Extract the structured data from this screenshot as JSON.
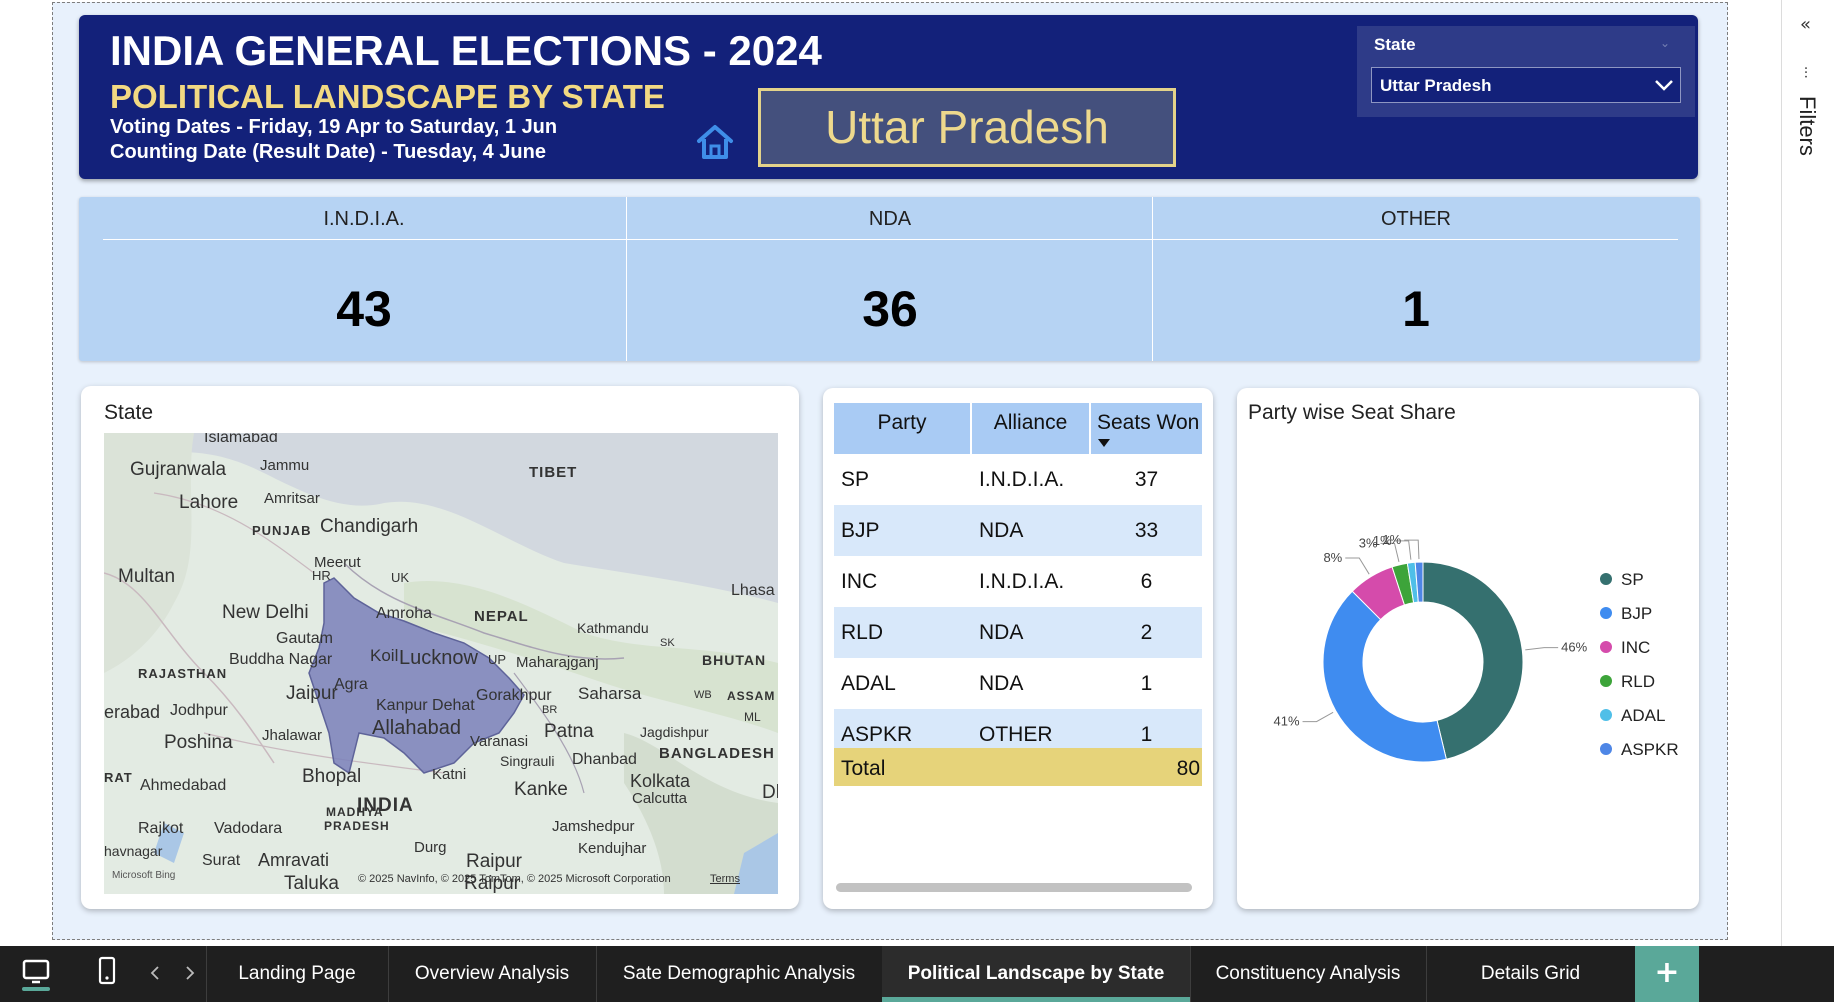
{
  "header": {
    "title": "INDIA GENERAL ELECTIONS - 2024",
    "subtitle": "POLITICAL LANDSCAPE BY STATE",
    "voting_dates": "Voting Dates - Friday, 19 Apr to Saturday, 1 Jun",
    "counting_date": "Counting Date (Result Date) - Tuesday, 4 June",
    "selected_state": "Uttar Pradesh",
    "home_icon": "home-icon"
  },
  "slicer": {
    "label": "State",
    "value": "Uttar Pradesh"
  },
  "kpis": [
    {
      "label": "I.N.D.I.A.",
      "value": "43"
    },
    {
      "label": "NDA",
      "value": "36"
    },
    {
      "label": "OTHER",
      "value": "1"
    }
  ],
  "map": {
    "title": "State",
    "credit": "© 2025 NavInfo, © 2025 TomTom, © 2025 Microsoft Corporation",
    "terms": "Terms",
    "bing": "Microsoft Bing",
    "labels": [
      "Islamabad",
      "Gujranwala",
      "Jammu",
      "Lahore",
      "Amritsar",
      "TIBET",
      "PUNJAB",
      "Chandigarh",
      "Multan",
      "HR",
      "Meerut",
      "UK",
      "New Delhi",
      "Amroha",
      "NEPAL",
      "Lhasa",
      "Gautam",
      "Buddha Nagar",
      "Kathmandu",
      "SK",
      "RAJASTHAN",
      "Koil",
      "Lucknow",
      "UP",
      "Maharajganj",
      "BHUTAN",
      "Jaipur",
      "Agra",
      "Gorakhpur",
      "Saharsa",
      "WB",
      "ASSAM",
      "erabad",
      "Jodhpur",
      "Kanpur Dehat",
      "BR",
      "ML",
      "Allahabad",
      "Patna",
      "Jagdishpur",
      "Poshina",
      "Jhalawar",
      "Varanasi",
      "Singrauli",
      "Dhanbad",
      "BANGLADESH",
      "RAT",
      "Bhopal",
      "Katni",
      "Ahmedabad",
      "Kanke",
      "Kolkata",
      "Dha",
      "MADHYA",
      "PRADESH",
      "INDIA",
      "Calcutta",
      "Rajkot",
      "Vadodara",
      "Jamshedpur",
      "Kendujhar",
      "Durg",
      "havnagar",
      "Surat",
      "Amravati",
      "Raipur",
      "Taluka",
      "Raipur"
    ]
  },
  "table": {
    "headers": [
      "Party",
      "Alliance",
      "Seats Won"
    ],
    "rows": [
      [
        "SP",
        "I.N.D.I.A.",
        "37"
      ],
      [
        "BJP",
        "NDA",
        "33"
      ],
      [
        "INC",
        "I.N.D.I.A.",
        "6"
      ],
      [
        "RLD",
        "NDA",
        "2"
      ],
      [
        "ADAL",
        "NDA",
        "1"
      ],
      [
        "ASPKR",
        "OTHER",
        "1"
      ]
    ],
    "total_label": "Total",
    "total_value": "80"
  },
  "chart_data": {
    "type": "pie",
    "title": "Party wise Seat Share",
    "categories": [
      "SP",
      "BJP",
      "INC",
      "RLD",
      "ADAL",
      "ASPKR"
    ],
    "values": [
      37,
      33,
      6,
      2,
      1,
      1
    ],
    "colors": [
      "#35706f",
      "#3f8cf0",
      "#d54bab",
      "#3da43a",
      "#4fbfe8",
      "#4e86e6"
    ],
    "data_labels": [
      "46%",
      "41%",
      "8%",
      "3%",
      "1%",
      "1%"
    ],
    "donut": true,
    "legend_position": "right"
  },
  "tabs": {
    "items": [
      "Landing Page",
      "Overview Analysis",
      "Sate Demographic Analysis",
      "Political Landscape by State",
      "Constituency Analysis",
      "Details Grid"
    ],
    "active_index": 3,
    "add": "+"
  },
  "filters_pane": {
    "label": "Filters",
    "collapse_glyph": "«",
    "filter_glyph": "⫶"
  },
  "colors": {
    "header_bg": "#13217a",
    "subtitle": "#f2d982",
    "kpi_bg": "#b6d3f3",
    "table_header": "#a9cbf4",
    "table_stripe": "#d8e8fa",
    "total_row": "#e6d37a",
    "active_tab": "#5aa899"
  }
}
